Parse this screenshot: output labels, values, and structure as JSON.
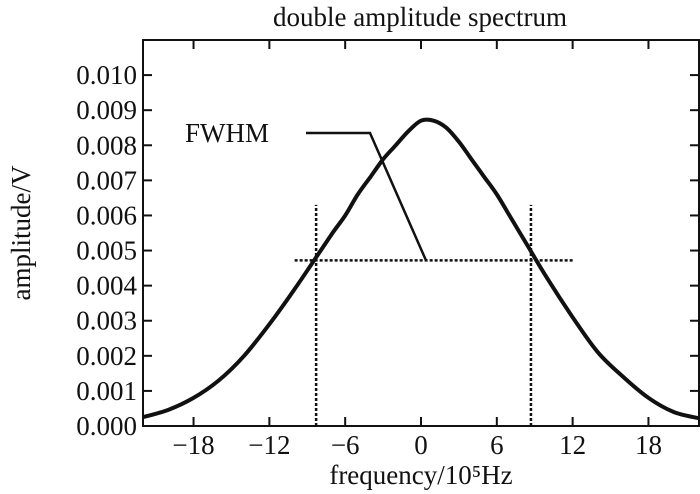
{
  "chart_data": {
    "type": "line",
    "title": "double amplitude spectrum",
    "xlabel": "frequency/10⁵Hz",
    "ylabel": "amplitude/V",
    "xlim": [
      -22,
      22
    ],
    "ylim": [
      0,
      0.011
    ],
    "xticks": [
      "−18",
      "−12",
      "−6",
      "0",
      "6",
      "12",
      "18"
    ],
    "xtick_values": [
      -18,
      -12,
      -6,
      0,
      6,
      12,
      18
    ],
    "yticks": [
      "0.000",
      "0.001",
      "0.002",
      "0.003",
      "0.004",
      "0.005",
      "0.006",
      "0.007",
      "0.008",
      "0.009",
      "0.010"
    ],
    "ytick_values": [
      0,
      0.001,
      0.002,
      0.003,
      0.004,
      0.005,
      0.006,
      0.007,
      0.008,
      0.009,
      0.01
    ],
    "grid": false,
    "series": [
      {
        "x": [
          -22,
          -20,
          -18,
          -16,
          -14,
          -12,
          -10,
          -8.5,
          -7,
          -6,
          -5,
          -4,
          -3,
          -2,
          -1,
          0,
          1,
          2,
          3,
          4,
          5,
          6,
          7,
          8.5,
          10,
          12,
          14,
          16,
          18,
          20,
          22
        ],
        "y": [
          0.00025,
          0.00046,
          0.0008,
          0.0013,
          0.002,
          0.0029,
          0.0039,
          0.0047,
          0.0055,
          0.006,
          0.0066,
          0.0071,
          0.0076,
          0.008,
          0.0084,
          0.0087,
          0.0087,
          0.0085,
          0.0081,
          0.0076,
          0.0071,
          0.0066,
          0.006,
          0.0051,
          0.0042,
          0.0031,
          0.0021,
          0.0014,
          0.0008,
          0.0004,
          0.00022
        ]
      }
    ],
    "annotations": [
      {
        "text": "FWHM",
        "half_max_level": 0.00472,
        "half_max_x_range": [
          -10,
          12
        ],
        "left_marker_x": -8.3,
        "right_marker_x": 8.7,
        "marker_y_range": [
          0,
          0.0063
        ]
      }
    ]
  }
}
